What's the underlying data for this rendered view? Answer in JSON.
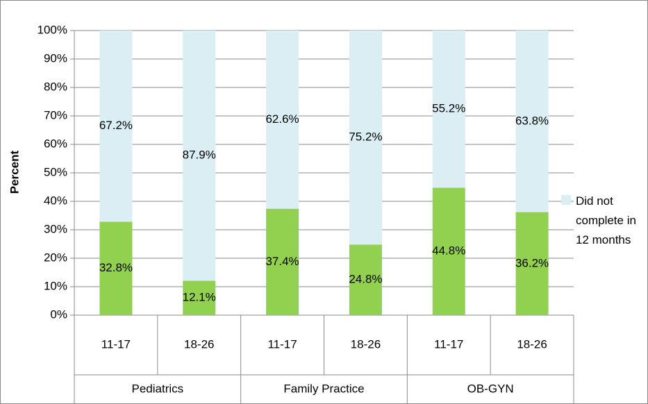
{
  "chart_data": {
    "type": "stacked_bar",
    "y_label": "Percent",
    "groups": [
      {
        "name": "Pediatrics",
        "categories": [
          "11-17",
          "18-26"
        ]
      },
      {
        "name": "Family Practice",
        "categories": [
          "11-17",
          "18-26"
        ]
      },
      {
        "name": "OB-GYN",
        "categories": [
          "11-17",
          "18-26"
        ]
      }
    ],
    "series": [
      {
        "color": "#92d050",
        "values": [
          32.8,
          12.1,
          37.4,
          24.8,
          44.8,
          36.2
        ],
        "value_labels": [
          "32.8%",
          "12.1%",
          "37.4%",
          "24.8%",
          "44.8%",
          "36.2%"
        ]
      },
      {
        "name": "Did not complete in 12 months",
        "color": "#daeef3",
        "values": [
          67.2,
          87.9,
          62.6,
          75.2,
          55.2,
          63.8
        ],
        "value_labels": [
          "67.2%",
          "87.9%",
          "62.6%",
          "75.2%",
          "55.2%",
          "63.8%"
        ]
      }
    ],
    "ylim": [
      0,
      100
    ],
    "yticks": [
      {
        "value": 0,
        "label": "0%"
      },
      {
        "value": 10,
        "label": "10%"
      },
      {
        "value": 20,
        "label": "20%"
      },
      {
        "value": 30,
        "label": "30%"
      },
      {
        "value": 40,
        "label": "40%"
      },
      {
        "value": 50,
        "label": "50%"
      },
      {
        "value": 60,
        "label": "60%"
      },
      {
        "value": 70,
        "label": "70%"
      },
      {
        "value": 80,
        "label": "80%"
      },
      {
        "value": 90,
        "label": "90%"
      },
      {
        "value": 100,
        "label": "100%"
      }
    ],
    "grid": true,
    "legend": "right"
  }
}
